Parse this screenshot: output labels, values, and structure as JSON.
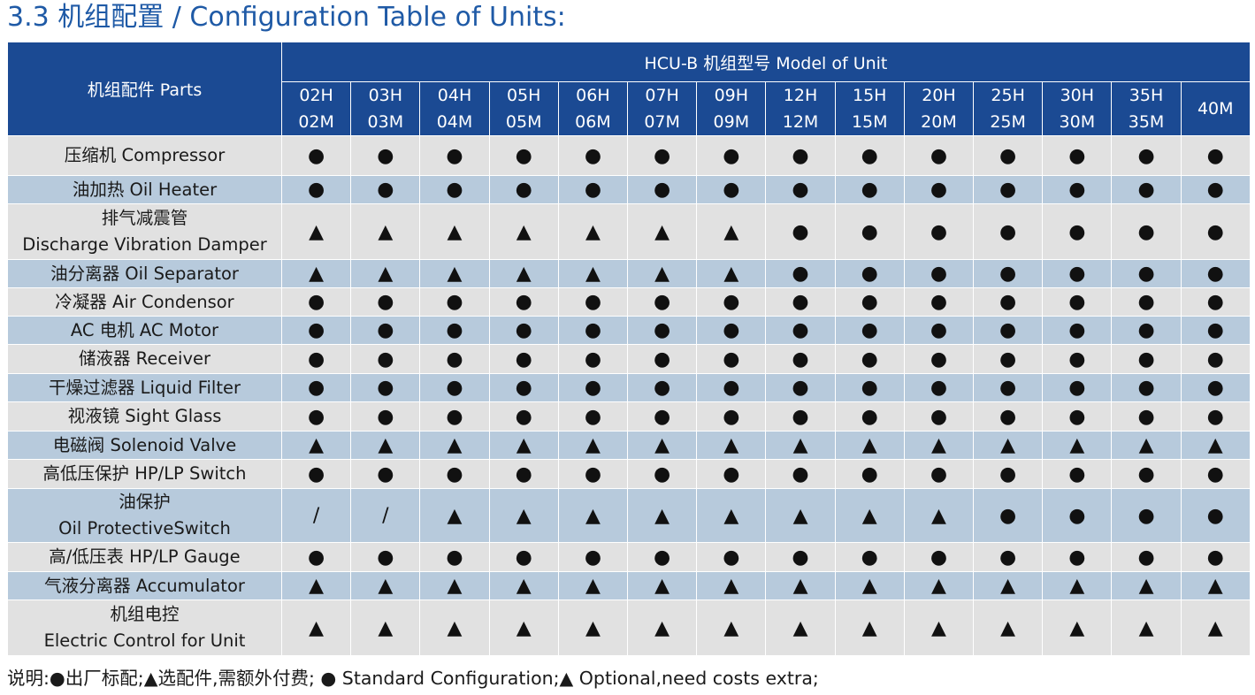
{
  "title": "3.3 机组配置 / Configuration Table of Units:",
  "header": {
    "parts": "机组配件 Parts",
    "model": "HCU-B 机组型号 Model of Unit",
    "models": [
      [
        "02H",
        "02M"
      ],
      [
        "03H",
        "03M"
      ],
      [
        "04H",
        "04M"
      ],
      [
        "05H",
        "05M"
      ],
      [
        "06H",
        "06M"
      ],
      [
        "07H",
        "07M"
      ],
      [
        "09H",
        "09M"
      ],
      [
        "12H",
        "12M"
      ],
      [
        "15H",
        "15M"
      ],
      [
        "20H",
        "20M"
      ],
      [
        "25H",
        "25M"
      ],
      [
        "30H",
        "30M"
      ],
      [
        "35H",
        "35M"
      ],
      [
        "40M"
      ]
    ]
  },
  "rows": [
    {
      "lines": [
        "压缩机 Compressor"
      ],
      "marks": [
        "●",
        "●",
        "●",
        "●",
        "●",
        "●",
        "●",
        "●",
        "●",
        "●",
        "●",
        "●",
        "●",
        "●"
      ]
    },
    {
      "lines": [
        "油加热 Oil Heater"
      ],
      "marks": [
        "●",
        "●",
        "●",
        "●",
        "●",
        "●",
        "●",
        "●",
        "●",
        "●",
        "●",
        "●",
        "●",
        "●"
      ]
    },
    {
      "lines": [
        "排气减震管",
        "Discharge Vibration Damper"
      ],
      "marks": [
        "▲",
        "▲",
        "▲",
        "▲",
        "▲",
        "▲",
        "▲",
        "●",
        "●",
        "●",
        "●",
        "●",
        "●",
        "●"
      ]
    },
    {
      "lines": [
        "油分离器 Oil Separator"
      ],
      "marks": [
        "▲",
        "▲",
        "▲",
        "▲",
        "▲",
        "▲",
        "▲",
        "●",
        "●",
        "●",
        "●",
        "●",
        "●",
        "●"
      ]
    },
    {
      "lines": [
        "冷凝器 Air Condensor"
      ],
      "marks": [
        "●",
        "●",
        "●",
        "●",
        "●",
        "●",
        "●",
        "●",
        "●",
        "●",
        "●",
        "●",
        "●",
        "●"
      ]
    },
    {
      "lines": [
        "AC 电机 AC Motor"
      ],
      "marks": [
        "●",
        "●",
        "●",
        "●",
        "●",
        "●",
        "●",
        "●",
        "●",
        "●",
        "●",
        "●",
        "●",
        "●"
      ]
    },
    {
      "lines": [
        "储液器 Receiver"
      ],
      "marks": [
        "●",
        "●",
        "●",
        "●",
        "●",
        "●",
        "●",
        "●",
        "●",
        "●",
        "●",
        "●",
        "●",
        "●"
      ]
    },
    {
      "lines": [
        "干燥过滤器  Liquid Filter"
      ],
      "marks": [
        "●",
        "●",
        "●",
        "●",
        "●",
        "●",
        "●",
        "●",
        "●",
        "●",
        "●",
        "●",
        "●",
        "●"
      ]
    },
    {
      "lines": [
        "视液镜 Sight Glass"
      ],
      "marks": [
        "●",
        "●",
        "●",
        "●",
        "●",
        "●",
        "●",
        "●",
        "●",
        "●",
        "●",
        "●",
        "●",
        "●"
      ]
    },
    {
      "lines": [
        "电磁阀 Solenoid Valve"
      ],
      "marks": [
        "▲",
        "▲",
        "▲",
        "▲",
        "▲",
        "▲",
        "▲",
        "▲",
        "▲",
        "▲",
        "▲",
        "▲",
        "▲",
        "▲"
      ]
    },
    {
      "lines": [
        "高低压保护 HP/LP Switch"
      ],
      "marks": [
        "●",
        "●",
        "●",
        "●",
        "●",
        "●",
        "●",
        "●",
        "●",
        "●",
        "●",
        "●",
        "●",
        "●"
      ]
    },
    {
      "lines": [
        "油保护",
        "Oil ProtectiveSwitch"
      ],
      "marks": [
        "/",
        "/",
        "▲",
        "▲",
        "▲",
        "▲",
        "▲",
        "▲",
        "▲",
        "▲",
        "●",
        "●",
        "●",
        "●"
      ]
    },
    {
      "lines": [
        "高/低压表 HP/LP Gauge"
      ],
      "marks": [
        "●",
        "●",
        "●",
        "●",
        "●",
        "●",
        "●",
        "●",
        "●",
        "●",
        "●",
        "●",
        "●",
        "●"
      ]
    },
    {
      "lines": [
        "气液分离器 Accumulator"
      ],
      "marks": [
        "▲",
        "▲",
        "▲",
        "▲",
        "▲",
        "▲",
        "▲",
        "▲",
        "▲",
        "▲",
        "▲",
        "▲",
        "▲",
        "▲"
      ]
    },
    {
      "lines": [
        "机组电控",
        "Electric Control for Unit"
      ],
      "marks": [
        "▲",
        "▲",
        "▲",
        "▲",
        "▲",
        "▲",
        "▲",
        "▲",
        "▲",
        "▲",
        "▲",
        "▲",
        "▲",
        "▲"
      ]
    }
  ],
  "legend": "说明:●出厂标配;▲选配件,需额外付费; ● Standard Configuration;▲ Optional,need costs extra;",
  "colors": {
    "header_bg": "#1b4a93",
    "title": "#1f5aa6",
    "row_light": "#e1e1e1",
    "row_blue": "#b7cadc"
  }
}
